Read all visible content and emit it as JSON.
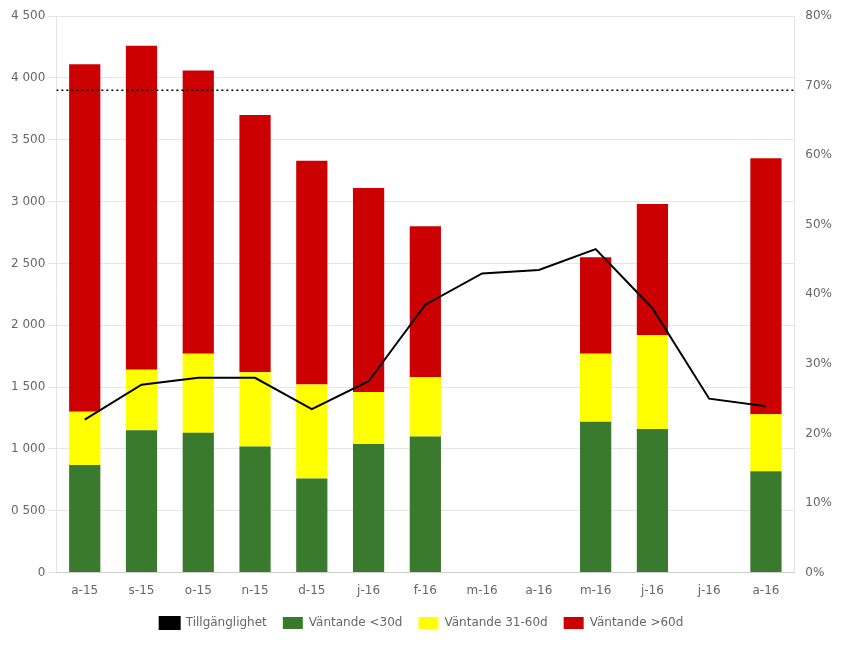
{
  "chart_data": {
    "type": "bar",
    "stacked": true,
    "categories": [
      "a-15",
      "s-15",
      "o-15",
      "n-15",
      "d-15",
      "j-16",
      "f-16",
      "m-16",
      "a-16",
      "m-16",
      "j-16",
      "j-16",
      "a-16"
    ],
    "series": [
      {
        "name": "Väntande <30d",
        "color": "#3a7a2e",
        "values": [
          870,
          1150,
          1130,
          1020,
          760,
          1040,
          1100,
          0,
          0,
          1220,
          1160,
          0,
          820
        ]
      },
      {
        "name": "Väntande 31-60d",
        "color": "#ffff00",
        "values": [
          430,
          490,
          640,
          600,
          760,
          420,
          480,
          0,
          0,
          550,
          760,
          0,
          460
        ]
      },
      {
        "name": "Väntande >60d",
        "color": "#cc0000",
        "values": [
          2810,
          2620,
          2290,
          2080,
          1810,
          1650,
          1220,
          0,
          0,
          780,
          1060,
          0,
          2070
        ]
      },
      {
        "name": "Tillgänglighet",
        "color": "#000000",
        "type": "line",
        "axis": "y2",
        "values": [
          22.0,
          27.0,
          28.0,
          28.0,
          23.5,
          27.5,
          38.5,
          43.0,
          43.5,
          46.5,
          38.0,
          25.0,
          23.9
        ]
      }
    ],
    "reference_line": {
      "value": 3900,
      "color": "#000000",
      "line_style": "dotted"
    },
    "ylim": [
      0,
      4500
    ],
    "yticks": [
      0,
      {
        "value": 500,
        "label": "0 500"
      },
      {
        "value": 1000,
        "label": "1 000"
      },
      {
        "value": 1500,
        "label": "1 500"
      },
      {
        "value": 2000,
        "label": "2 000"
      },
      {
        "value": 2500,
        "label": "2 500"
      },
      {
        "value": 3000,
        "label": "3 000"
      },
      {
        "value": 3500,
        "label": "3 500"
      },
      {
        "value": 4000,
        "label": "4 000"
      },
      {
        "value": 4500,
        "label": "4 500"
      }
    ],
    "y2lim": [
      0,
      80
    ],
    "y2ticks": [
      {
        "value": 0,
        "label": "0%"
      },
      {
        "value": 10,
        "label": "10%"
      },
      {
        "value": 20,
        "label": "20%"
      },
      {
        "value": 30,
        "label": "30%"
      },
      {
        "value": 40,
        "label": "40%"
      },
      {
        "value": 50,
        "label": "50%"
      },
      {
        "value": 60,
        "label": "60%"
      },
      {
        "value": 70,
        "label": "70%"
      },
      {
        "value": 80,
        "label": "80%"
      }
    ],
    "grid": true,
    "legend": "bottom"
  }
}
